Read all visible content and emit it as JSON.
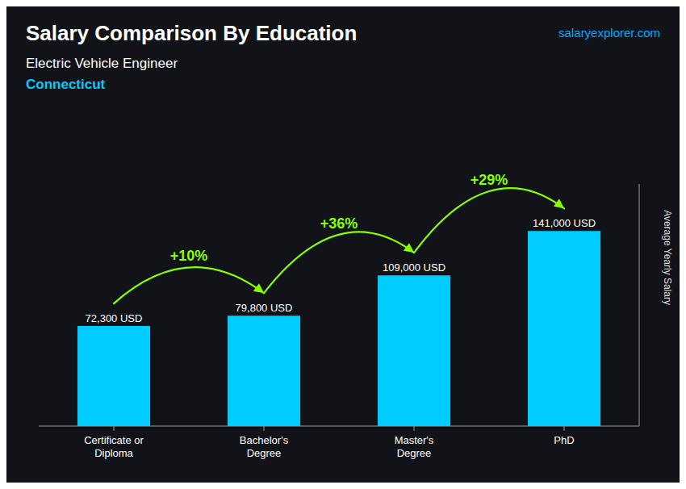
{
  "chart_data": {
    "type": "bar",
    "title": "Salary Comparison By Education",
    "subtitle": "Electric Vehicle Engineer",
    "annotations": [
      {
        "text": "Connecticut",
        "color": "#00ccff"
      },
      {
        "text": "salaryexplorer.com",
        "color": "#00aaff"
      },
      {
        "text": "+10%",
        "from": "Certificate or\nDiploma",
        "to": "Bachelor's\nDegree",
        "color": "#88ff00"
      },
      {
        "text": "+36%",
        "from": "Bachelor's\nDegree",
        "to": "Master's\nDegree",
        "color": "#88ff00"
      },
      {
        "text": "+29%",
        "from": "Master's\nDegree",
        "to": "PhD",
        "color": "#88ff00"
      }
    ],
    "ylabel": "Average Yearly Salary",
    "categories": [
      "Certificate or\nDiploma",
      "Bachelor's\nDegree",
      "Master's\nDegree",
      "PhD"
    ],
    "values": [
      72300,
      79800,
      109000,
      141000
    ],
    "value_labels": [
      "72,300 USD",
      "79,800 USD",
      "109,000 USD",
      "141,000 USD"
    ],
    "data_labels": true,
    "color": "#00ccff",
    "ylim": [
      0,
      175000
    ],
    "grid": false,
    "tick_labels": "x"
  }
}
